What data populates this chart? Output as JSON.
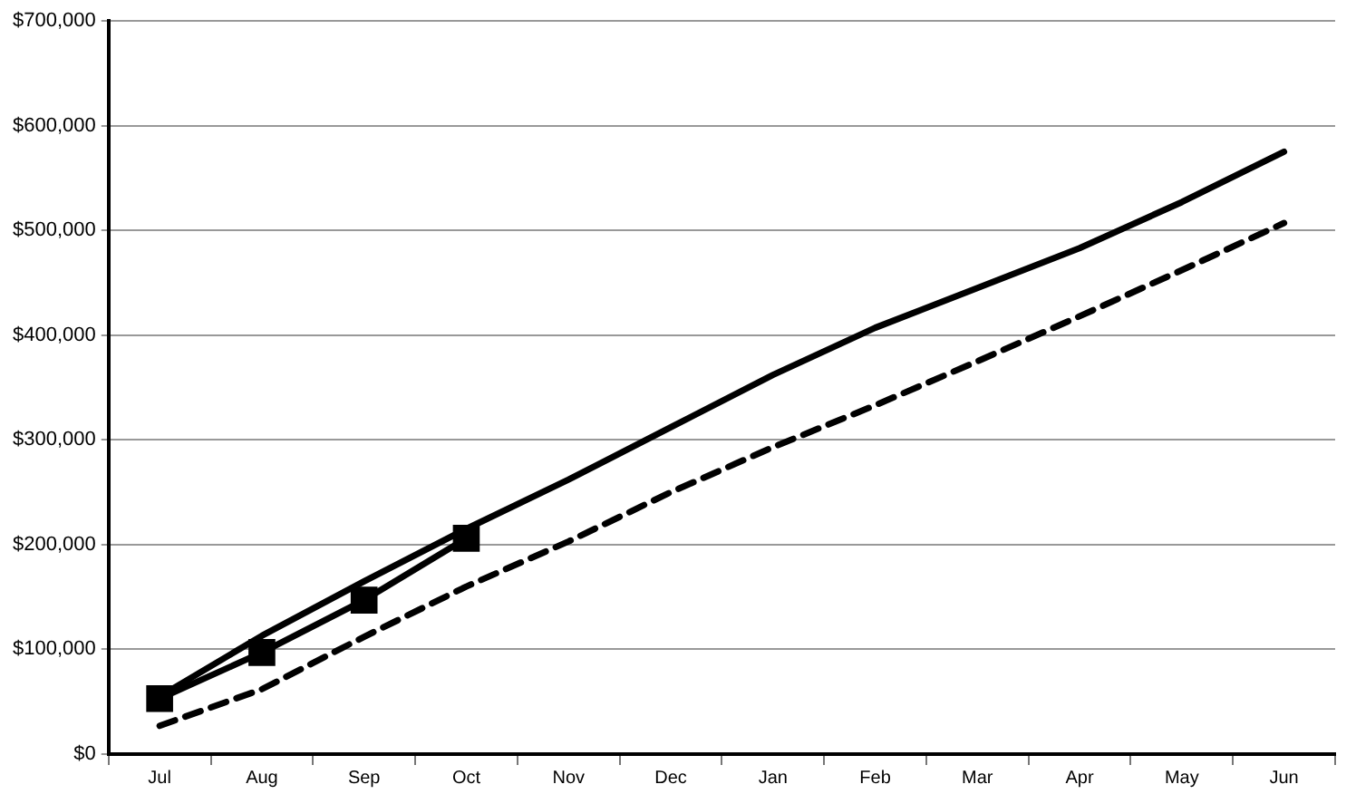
{
  "chart_data": {
    "type": "line",
    "categories": [
      "Jul",
      "Aug",
      "Sep",
      "Oct",
      "Nov",
      "Dec",
      "Jan",
      "Feb",
      "Mar",
      "Apr",
      "May",
      "Jun"
    ],
    "series": [
      {
        "color": "#000000",
        "line_style": "solid",
        "marker": "none",
        "values": [
          55000,
          113000,
          165000,
          215000,
          262000,
          312000,
          362000,
          407000,
          445000,
          483000,
          527000,
          575000
        ]
      },
      {
        "color": "#000000",
        "line_style": "dashed",
        "marker": "none",
        "values": [
          27000,
          62000,
          112000,
          160000,
          203000,
          250000,
          293000,
          333000,
          375000,
          418000,
          462000,
          507000
        ]
      },
      {
        "color": "#000000",
        "line_style": "solid",
        "marker": "square",
        "values": [
          53000,
          97000,
          147000,
          206000,
          null,
          null,
          null,
          null,
          null,
          null,
          null,
          null
        ]
      }
    ],
    "ylim": [
      0,
      700000
    ],
    "yticks": [
      {
        "value": 0,
        "label": "$0"
      },
      {
        "value": 100000,
        "label": "$100,000"
      },
      {
        "value": 200000,
        "label": "$200,000"
      },
      {
        "value": 300000,
        "label": "$300,000"
      },
      {
        "value": 400000,
        "label": "$400,000"
      },
      {
        "value": 500000,
        "label": "$500,000"
      },
      {
        "value": 600000,
        "label": "$600,000"
      },
      {
        "value": 700000,
        "label": "$700,000"
      }
    ],
    "grid": "y",
    "legend": false
  }
}
